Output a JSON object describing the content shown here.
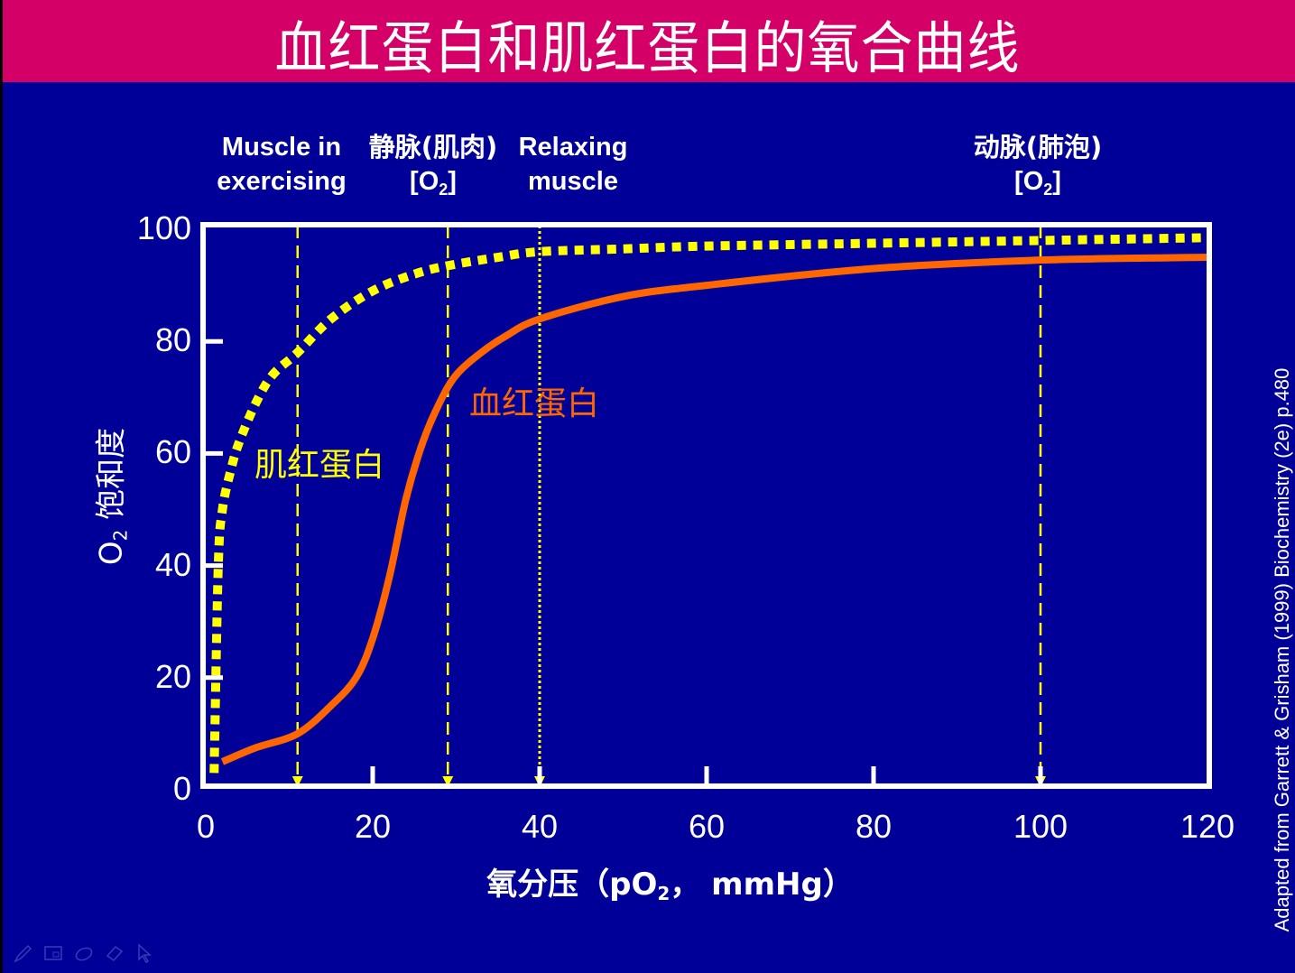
{
  "slide": {
    "title": "血红蛋白和肌红蛋白的氧合曲线",
    "colors": {
      "header": "#D40068",
      "background": "#000099",
      "myoglobin": "#FFFF00",
      "hemoglobin": "#FF6600",
      "axis": "#FFFFFF"
    },
    "annotations": [
      {
        "line1": "Muscle in",
        "line2": "exercising",
        "x_value": 11
      },
      {
        "line1": "静脉(肌肉)",
        "line2_pre": "[O",
        "line2_sub": "2",
        "line2_post": "]",
        "x_value": 29
      },
      {
        "line1": "Relaxing",
        "line2": "muscle",
        "x_value": 40
      },
      {
        "line1": "动脉(肺泡)",
        "line2_pre": "[O",
        "line2_sub": "2",
        "line2_post": "]",
        "x_value": 100
      }
    ],
    "credit": "Adapted from Garrett & Grisham (1999) Biochemistry (2e) p.480",
    "toolbar_icons": [
      "pen-icon",
      "slide-navigator-icon",
      "ink-icon",
      "eraser-icon",
      "pointer-arrow-icon"
    ]
  },
  "chart_data": {
    "type": "line",
    "title": "血红蛋白和肌红蛋白的氧合曲线",
    "xlabel": "氧分压（pO2, mmHg）",
    "xlabel_parts": {
      "pre": "氧分压（pO",
      "sub": "2",
      "post": "， mmHg）"
    },
    "ylabel": "O2 饱和度",
    "ylabel_parts": {
      "pre": "O",
      "sub": "2",
      "post": " 饱和度"
    },
    "xlim": [
      0,
      120
    ],
    "ylim": [
      0,
      100
    ],
    "xticks": [
      "0",
      "20",
      "40",
      "60",
      "80",
      "100",
      "120"
    ],
    "yticks": [
      "0",
      "20",
      "40",
      "60",
      "80",
      "100"
    ],
    "grid": false,
    "reference_lines_x": [
      11,
      29,
      40,
      100
    ],
    "series": [
      {
        "name": "肌红蛋白",
        "style": "dotted",
        "x": [
          1,
          1.5,
          2,
          3,
          4,
          6,
          8,
          11,
          15,
          20,
          25,
          29,
          35,
          40,
          50,
          60,
          80,
          100,
          120
        ],
        "values": [
          3,
          40,
          50,
          57,
          62,
          69,
          74,
          78,
          84,
          89,
          92,
          93.5,
          95,
          96,
          96.5,
          97,
          97.5,
          98,
          98.5
        ]
      },
      {
        "name": "血红蛋白",
        "style": "solid",
        "x": [
          2,
          6,
          11,
          15,
          18,
          20,
          22,
          24,
          26,
          28,
          30,
          33,
          36,
          40,
          50,
          60,
          80,
          100,
          120
        ],
        "values": [
          5,
          7.5,
          10,
          15,
          20,
          27,
          38,
          52,
          62,
          69,
          74,
          78,
          81,
          84,
          88,
          90,
          93,
          94.5,
          95
        ]
      }
    ],
    "series_labels": [
      {
        "text": "肌红蛋白",
        "color": "#FFFF00"
      },
      {
        "text": "血红蛋白",
        "color": "#FF6600"
      }
    ]
  }
}
